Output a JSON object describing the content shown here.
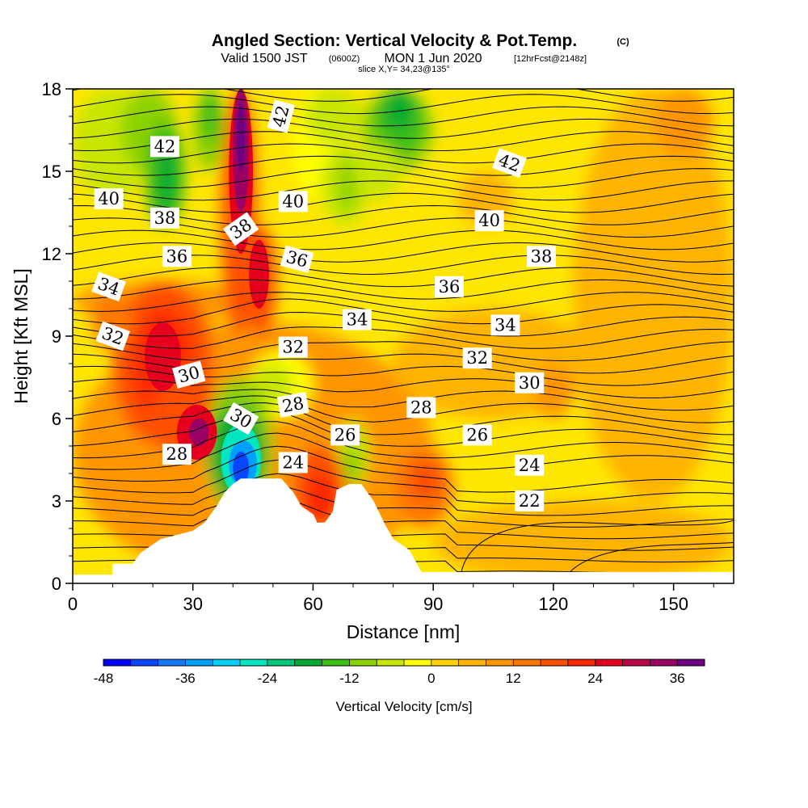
{
  "header": {
    "title": "Angled Section: Vertical Velocity & Pot.Temp.",
    "title_unit": "(C)",
    "valid_prefix": "Valid 1500 JST",
    "valid_utc": "(0600Z)",
    "valid_date": "MON 1 Jun 2020",
    "forecast": "[12hrFcst@2148z]",
    "slice": "slice X,Y= 34,23@135°"
  },
  "chart_data": {
    "type": "heatmap",
    "xlabel": "Distance [nm]",
    "ylabel": "Height [Kft MSL]",
    "xlim": [
      0,
      165
    ],
    "ylim": [
      0,
      18
    ],
    "x_ticks": [
      "0",
      "30",
      "60",
      "90",
      "120",
      "150"
    ],
    "y_ticks": [
      "0",
      "3",
      "6",
      "9",
      "12",
      "15",
      "18"
    ],
    "colorbar": {
      "title": "Vertical Velocity [cm/s]",
      "min": -48,
      "max": 40,
      "step": 4,
      "tick_labels": [
        "-48",
        "-36",
        "-24",
        "-12",
        "0",
        "12",
        "24",
        "36"
      ],
      "colors": [
        "#0000ff",
        "#0a46ff",
        "#1478ff",
        "#00a0ff",
        "#00d2ff",
        "#00e6be",
        "#00c878",
        "#00aa32",
        "#3cbe14",
        "#8cd200",
        "#c8e600",
        "#ffff00",
        "#ffd200",
        "#ffb400",
        "#ff9600",
        "#ff7800",
        "#ff5000",
        "#ff2800",
        "#e6001e",
        "#be0046",
        "#9b0064",
        "#6e0082"
      ]
    },
    "terrain_profile_nm_kft": [
      [
        0,
        0.3
      ],
      [
        10,
        0.3
      ],
      [
        10,
        0.7
      ],
      [
        15,
        0.7
      ],
      [
        17,
        1.1
      ],
      [
        22,
        1.6
      ],
      [
        30,
        1.9
      ],
      [
        33,
        2.2
      ],
      [
        36,
        2.8
      ],
      [
        38,
        3.3
      ],
      [
        40,
        3.6
      ],
      [
        42,
        3.8
      ],
      [
        46,
        3.8
      ],
      [
        52,
        3.8
      ],
      [
        55,
        3.3
      ],
      [
        57,
        2.8
      ],
      [
        60,
        2.5
      ],
      [
        61,
        2.2
      ],
      [
        63,
        2.2
      ],
      [
        65,
        2.6
      ],
      [
        66,
        3.4
      ],
      [
        69,
        3.6
      ],
      [
        72,
        3.6
      ],
      [
        75,
        3.0
      ],
      [
        78,
        2.1
      ],
      [
        80,
        1.6
      ],
      [
        84,
        1.2
      ],
      [
        87,
        0.4
      ],
      [
        165,
        0.4
      ]
    ],
    "contour_labels": [
      {
        "text": "42",
        "x": 23,
        "y": 15.9,
        "angle": 0
      },
      {
        "text": "42",
        "x": 52,
        "y": 17.0,
        "angle": -75
      },
      {
        "text": "42",
        "x": 109,
        "y": 15.3,
        "angle": 20
      },
      {
        "text": "40",
        "x": 9,
        "y": 14.0,
        "angle": 0
      },
      {
        "text": "40",
        "x": 55,
        "y": 13.9,
        "angle": 0
      },
      {
        "text": "40",
        "x": 104,
        "y": 13.2,
        "angle": 0
      },
      {
        "text": "38",
        "x": 23,
        "y": 13.3,
        "angle": 0
      },
      {
        "text": "38",
        "x": 42,
        "y": 12.9,
        "angle": -35
      },
      {
        "text": "38",
        "x": 117,
        "y": 11.9,
        "angle": 0
      },
      {
        "text": "36",
        "x": 26,
        "y": 11.9,
        "angle": 0
      },
      {
        "text": "36",
        "x": 56,
        "y": 11.8,
        "angle": 15
      },
      {
        "text": "36",
        "x": 94,
        "y": 10.8,
        "angle": 0
      },
      {
        "text": "34",
        "x": 9,
        "y": 10.8,
        "angle": 20
      },
      {
        "text": "34",
        "x": 71,
        "y": 9.6,
        "angle": 0
      },
      {
        "text": "34",
        "x": 108,
        "y": 9.4,
        "angle": 0
      },
      {
        "text": "32",
        "x": 10,
        "y": 9.0,
        "angle": 20
      },
      {
        "text": "32",
        "x": 55,
        "y": 8.6,
        "angle": 0
      },
      {
        "text": "32",
        "x": 101,
        "y": 8.2,
        "angle": 0
      },
      {
        "text": "30",
        "x": 29,
        "y": 7.6,
        "angle": -15
      },
      {
        "text": "30",
        "x": 42,
        "y": 6.0,
        "angle": 30
      },
      {
        "text": "30",
        "x": 114,
        "y": 7.3,
        "angle": 0
      },
      {
        "text": "28",
        "x": 55,
        "y": 6.5,
        "angle": -10
      },
      {
        "text": "28",
        "x": 87,
        "y": 6.4,
        "angle": 0
      },
      {
        "text": "28",
        "x": 26,
        "y": 4.7,
        "angle": 0
      },
      {
        "text": "26",
        "x": 68,
        "y": 5.4,
        "angle": 0
      },
      {
        "text": "26",
        "x": 101,
        "y": 5.4,
        "angle": 0
      },
      {
        "text": "24",
        "x": 55,
        "y": 4.4,
        "angle": 0
      },
      {
        "text": "24",
        "x": 114,
        "y": 4.3,
        "angle": 0
      },
      {
        "text": "22",
        "x": 114,
        "y": 3.0,
        "angle": 0
      }
    ]
  }
}
